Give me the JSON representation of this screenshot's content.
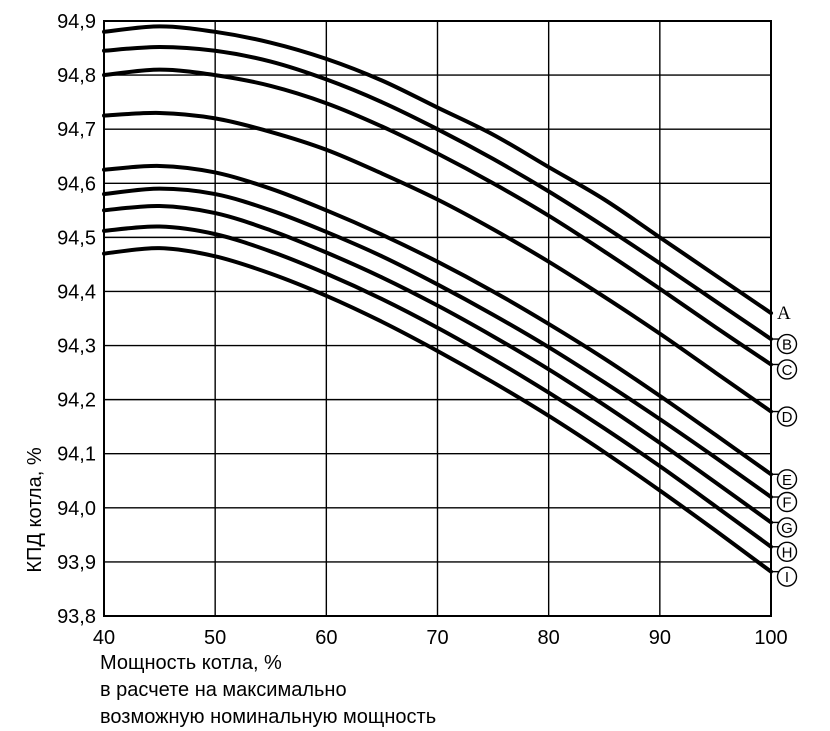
{
  "chart_data": {
    "type": "line",
    "ylabel": "КПД котла, %",
    "xlabel_lines": [
      "Мощность котла, %",
      "в расчете на максимально",
      "возможную номинальную мощность"
    ],
    "xlim": [
      40,
      100
    ],
    "ylim": [
      93.8,
      94.9
    ],
    "x_ticks": [
      "40",
      "50",
      "60",
      "70",
      "80",
      "90",
      "100"
    ],
    "y_ticks": [
      "93,8",
      "93,9",
      "94,0",
      "94,1",
      "94,2",
      "94,3",
      "94,4",
      "94,5",
      "94,6",
      "94,7",
      "94,8",
      "94,9"
    ],
    "grid": true,
    "x": [
      40,
      45,
      50,
      55,
      60,
      65,
      70,
      75,
      80,
      85,
      90,
      95,
      100
    ],
    "series": [
      {
        "name": "A",
        "marker_style": "plain",
        "values": [
          94.88,
          94.89,
          94.88,
          94.86,
          94.83,
          94.79,
          94.74,
          94.69,
          94.63,
          94.57,
          94.5,
          94.43,
          94.36
        ]
      },
      {
        "name": "B",
        "marker_style": "circle",
        "values": [
          94.845,
          94.852,
          94.845,
          94.825,
          94.792,
          94.75,
          94.7,
          94.645,
          94.585,
          94.52,
          94.452,
          94.382,
          94.312
        ]
      },
      {
        "name": "C",
        "marker_style": "circle",
        "values": [
          94.8,
          94.81,
          94.8,
          94.78,
          94.748,
          94.705,
          94.655,
          94.6,
          94.54,
          94.474,
          94.405,
          94.334,
          94.265
        ]
      },
      {
        "name": "D",
        "marker_style": "circle",
        "values": [
          94.725,
          94.73,
          94.72,
          94.695,
          94.662,
          94.618,
          94.57,
          94.515,
          94.455,
          94.39,
          94.322,
          94.25,
          94.178
        ]
      },
      {
        "name": "E",
        "marker_style": "circle",
        "values": [
          94.625,
          94.632,
          94.62,
          94.59,
          94.55,
          94.505,
          94.455,
          94.4,
          94.34,
          94.276,
          94.207,
          94.135,
          94.062
        ]
      },
      {
        "name": "F",
        "marker_style": "circle",
        "values": [
          94.58,
          94.59,
          94.58,
          94.55,
          94.51,
          94.465,
          94.413,
          94.357,
          94.297,
          94.232,
          94.164,
          94.093,
          94.02
        ]
      },
      {
        "name": "G",
        "marker_style": "circle",
        "values": [
          94.55,
          94.558,
          94.545,
          94.513,
          94.472,
          94.426,
          94.374,
          94.317,
          94.256,
          94.19,
          94.12,
          94.047,
          93.973
        ]
      },
      {
        "name": "H",
        "marker_style": "circle",
        "values": [
          94.512,
          94.52,
          94.506,
          94.474,
          94.433,
          94.386,
          94.333,
          94.275,
          94.213,
          94.147,
          94.077,
          94.003,
          93.928
        ]
      },
      {
        "name": "I",
        "marker_style": "circle",
        "values": [
          94.47,
          94.48,
          94.465,
          94.433,
          94.392,
          94.344,
          94.29,
          94.232,
          94.17,
          94.103,
          94.032,
          93.958,
          93.882
        ]
      }
    ]
  }
}
